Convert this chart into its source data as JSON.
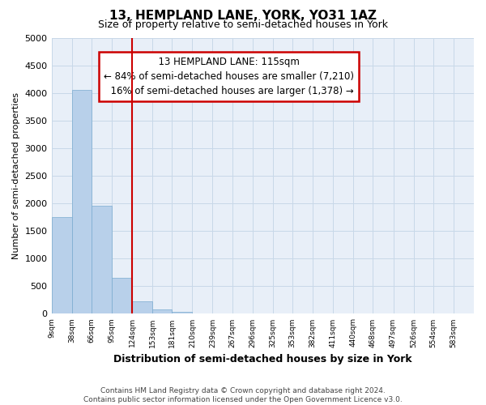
{
  "title": "13, HEMPLAND LANE, YORK, YO31 1AZ",
  "subtitle": "Size of property relative to semi-detached houses in York",
  "xlabel": "Distribution of semi-detached houses by size in York",
  "ylabel": "Number of semi-detached properties",
  "property_label": "13 HEMPLAND LANE: 115sqm",
  "pct_smaller": 84,
  "count_smaller": 7210,
  "pct_larger": 16,
  "count_larger": 1378,
  "bin_edges": [
    9,
    38,
    66,
    95,
    124,
    153,
    181,
    210,
    239,
    267,
    296,
    325,
    353,
    382,
    411,
    440,
    468,
    497,
    526,
    554,
    583
  ],
  "bar_heights": [
    1750,
    4050,
    1950,
    650,
    230,
    80,
    30,
    0,
    0,
    0,
    0,
    0,
    0,
    0,
    0,
    0,
    0,
    0,
    0,
    0
  ],
  "bar_color": "#b8d0ea",
  "bar_edge_color": "#7aabcf",
  "vline_x": 124,
  "vline_color": "#cc0000",
  "annotation_box_color": "#cc0000",
  "grid_color": "#c8d8e8",
  "background_color": "#e8eff8",
  "ylim": [
    0,
    5000
  ],
  "yticks": [
    0,
    500,
    1000,
    1500,
    2000,
    2500,
    3000,
    3500,
    4000,
    4500,
    5000
  ],
  "footer_line1": "Contains HM Land Registry data © Crown copyright and database right 2024.",
  "footer_line2": "Contains public sector information licensed under the Open Government Licence v3.0."
}
